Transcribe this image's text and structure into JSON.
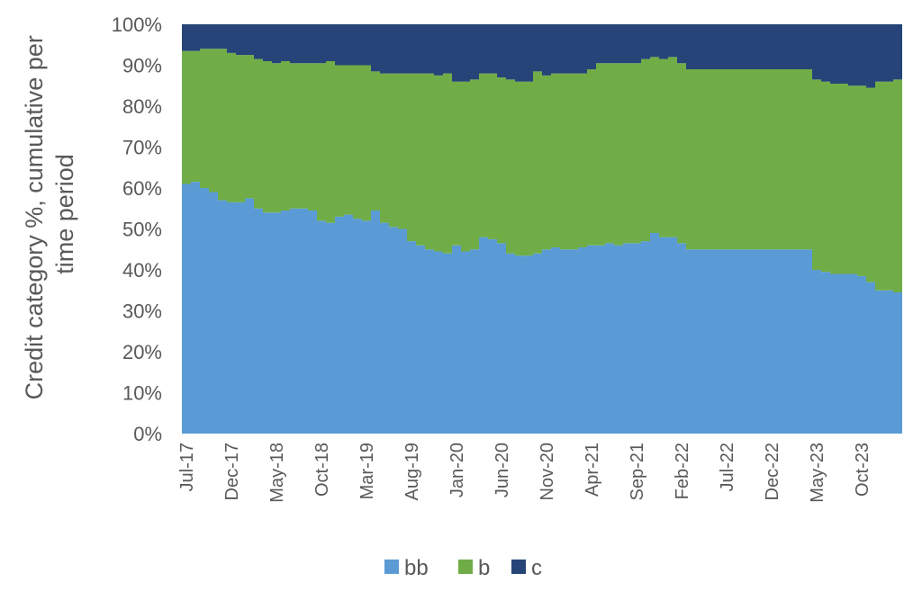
{
  "chart_data": {
    "type": "area",
    "stacked": true,
    "percent": true,
    "ylabel": "Credit category %, cumulative per time period",
    "ylabel_lines": [
      "Credit category %, cumulative per",
      "time period"
    ],
    "xlabel": "",
    "ylim": [
      0,
      100
    ],
    "yticks": [
      "0%",
      "10%",
      "20%",
      "30%",
      "40%",
      "50%",
      "60%",
      "70%",
      "80%",
      "90%",
      "100%"
    ],
    "x_start": "Jul-17",
    "x_end": "Dec-23",
    "xtick_labels": [
      "Jul-17",
      "Dec-17",
      "May-18",
      "Oct-18",
      "Mar-19",
      "Aug-19",
      "Jan-20",
      "Jun-20",
      "Nov-20",
      "Apr-21",
      "Sep-21",
      "Feb-22",
      "Jul-22",
      "Dec-22",
      "May-23",
      "Oct-23"
    ],
    "legend_position": "bottom",
    "legend": [
      "bb",
      "b",
      "c"
    ],
    "colors": {
      "bb": "#5B9BD5",
      "b": "#70AD47",
      "c": "#264478"
    },
    "series": [
      {
        "name": "bb",
        "values": [
          61,
          61.5,
          60,
          59,
          57,
          56.5,
          56.5,
          57.5,
          55,
          54,
          54,
          54.5,
          55,
          55,
          54.5,
          52,
          51.5,
          53,
          53.5,
          52.5,
          52,
          54.5,
          51.5,
          50.5,
          50,
          47,
          46,
          45,
          44.5,
          44,
          46,
          44.5,
          45,
          48,
          47.5,
          46.5,
          44,
          43.5,
          43.5,
          44,
          45,
          45.5,
          45,
          45,
          45.5,
          46,
          46,
          46.5,
          46,
          46.5,
          46.5,
          47,
          49,
          48,
          48,
          46.5,
          45,
          45,
          45,
          45,
          45,
          45,
          45,
          45,
          45,
          45,
          45,
          45,
          45,
          45,
          40,
          39.5,
          39,
          39,
          39,
          38.5,
          37,
          35,
          35,
          34.5
        ]
      },
      {
        "name": "b",
        "values": [
          32.5,
          32,
          34,
          35,
          37,
          36.5,
          36,
          35,
          36.5,
          37,
          36.5,
          36.5,
          35.5,
          35.5,
          36,
          38.5,
          39.5,
          37,
          36.5,
          37.5,
          38,
          34,
          36.5,
          37.5,
          38,
          41,
          42,
          43,
          43,
          44,
          40,
          41.5,
          41.5,
          40,
          40.5,
          40.5,
          42.5,
          42.5,
          42.5,
          44.5,
          42.5,
          42.5,
          43,
          43,
          42.5,
          43,
          44.5,
          44,
          44.5,
          44,
          44,
          44.5,
          43,
          43.5,
          44,
          44,
          44,
          44,
          44,
          44,
          44,
          44,
          44,
          44,
          44,
          44,
          44,
          44,
          44,
          44,
          46.5,
          46.5,
          46.5,
          46.5,
          46,
          46.5,
          47.5,
          51,
          51,
          52
        ]
      },
      {
        "name": "c",
        "values": [
          6.5,
          6.5,
          6,
          6,
          6,
          7,
          7.5,
          7.5,
          8.5,
          9,
          9.5,
          9,
          9.5,
          9.5,
          9.5,
          9.5,
          9,
          10,
          10,
          10,
          10,
          11.5,
          12,
          12,
          12,
          12,
          12,
          12,
          12.5,
          12,
          14,
          14,
          13.5,
          12,
          12,
          13,
          13.5,
          14,
          14,
          11.5,
          12.5,
          12,
          12,
          12,
          12,
          11,
          9.5,
          9.5,
          9.5,
          9.5,
          9.5,
          8.5,
          8,
          8.5,
          8,
          9.5,
          11,
          11,
          11,
          11,
          11,
          11,
          11,
          11,
          11,
          11,
          11,
          11,
          11,
          11,
          13.5,
          14,
          14.5,
          14.5,
          15,
          15,
          15.5,
          14,
          14,
          13.5
        ]
      }
    ]
  }
}
